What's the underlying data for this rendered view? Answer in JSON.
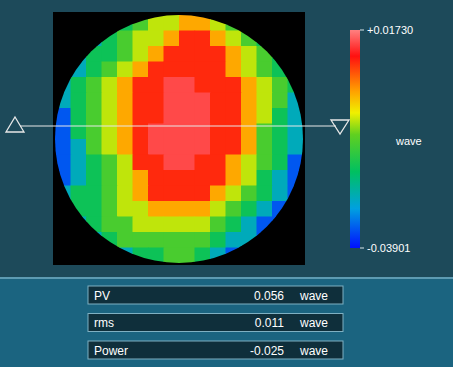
{
  "chart_data": {
    "type": "heatmap",
    "tick_labels": false,
    "cells": [
      [
        null,
        null,
        null,
        null,
        -0.018,
        -0.012,
        -0.006,
        -0.006,
        0.001,
        0.001,
        -0.006,
        -0.012,
        null,
        null,
        null,
        null
      ],
      [
        null,
        null,
        -0.026,
        -0.018,
        -0.012,
        -0.006,
        -0.006,
        0.001,
        0.009,
        0.009,
        0.001,
        -0.006,
        -0.012,
        -0.018,
        null,
        null
      ],
      [
        null,
        -0.026,
        -0.018,
        -0.018,
        -0.012,
        -0.006,
        0.001,
        0.009,
        0.009,
        0.009,
        0.009,
        0.001,
        -0.006,
        -0.012,
        -0.018,
        null
      ],
      [
        -0.026,
        -0.026,
        -0.018,
        -0.012,
        -0.006,
        0.001,
        0.009,
        0.009,
        0.009,
        0.009,
        0.009,
        0.001,
        -0.006,
        -0.012,
        -0.018,
        -0.026
      ],
      [
        -0.026,
        -0.018,
        -0.012,
        -0.006,
        0.001,
        0.009,
        0.009,
        0.014,
        0.014,
        0.009,
        0.009,
        0.009,
        0.001,
        -0.006,
        -0.012,
        -0.018
      ],
      [
        -0.026,
        -0.018,
        -0.012,
        -0.006,
        0.001,
        0.009,
        0.009,
        0.014,
        0.014,
        0.014,
        0.009,
        0.009,
        0.001,
        -0.006,
        -0.012,
        -0.026
      ],
      [
        -0.034,
        -0.018,
        -0.012,
        -0.006,
        0.001,
        0.009,
        0.009,
        0.014,
        0.014,
        0.014,
        0.009,
        0.009,
        0.001,
        -0.006,
        -0.018,
        -0.026
      ],
      [
        -0.034,
        -0.018,
        -0.012,
        -0.006,
        0.001,
        0.009,
        0.014,
        0.014,
        0.014,
        0.014,
        0.009,
        0.009,
        0.001,
        -0.012,
        -0.018,
        -0.026
      ],
      [
        -0.034,
        -0.026,
        -0.012,
        -0.006,
        0.001,
        0.009,
        0.014,
        0.014,
        0.014,
        0.014,
        0.009,
        0.009,
        0.001,
        -0.012,
        -0.018,
        -0.026
      ],
      [
        -0.034,
        -0.026,
        -0.018,
        -0.012,
        -0.006,
        0.009,
        0.009,
        0.014,
        0.014,
        0.009,
        0.009,
        0.001,
        -0.006,
        -0.012,
        -0.018,
        -0.034
      ],
      [
        -0.034,
        -0.026,
        -0.018,
        -0.012,
        -0.006,
        0.001,
        0.009,
        0.009,
        0.009,
        0.009,
        0.009,
        0.001,
        -0.006,
        -0.018,
        -0.026,
        -0.034
      ],
      [
        -0.026,
        -0.018,
        -0.018,
        -0.012,
        -0.006,
        0.001,
        0.009,
        0.009,
        0.009,
        0.009,
        0.001,
        -0.006,
        -0.012,
        -0.018,
        -0.026,
        -0.034
      ],
      [
        -0.034,
        -0.018,
        -0.018,
        -0.012,
        -0.006,
        -0.006,
        0.001,
        0.001,
        0.001,
        0.001,
        -0.006,
        -0.012,
        -0.018,
        -0.026,
        -0.034,
        -0.034
      ],
      [
        null,
        -0.026,
        -0.018,
        -0.012,
        -0.012,
        -0.006,
        -0.006,
        -0.006,
        -0.006,
        -0.006,
        -0.012,
        -0.018,
        -0.026,
        -0.034,
        -0.034,
        null
      ],
      [
        null,
        null,
        -0.026,
        -0.018,
        -0.012,
        -0.012,
        -0.012,
        -0.012,
        -0.012,
        -0.012,
        -0.018,
        -0.026,
        -0.026,
        -0.034,
        null,
        null
      ],
      [
        null,
        null,
        null,
        null,
        -0.026,
        -0.018,
        -0.018,
        -0.012,
        -0.012,
        -0.018,
        -0.026,
        -0.034,
        null,
        null,
        null,
        null
      ]
    ],
    "colorbar": {
      "range": [
        -0.03901,
        0.0173
      ],
      "ticks": [
        {
          "value": 0.0173,
          "label": "+0.01730"
        },
        -0.03901
      ],
      "label": "wave"
    }
  },
  "readouts": [
    {
      "label": "PV",
      "value": 0.056,
      "unit": "wave"
    },
    {
      "label": "rms",
      "value": 0.011,
      "unit": "wave"
    },
    {
      "label": "Power",
      "value": -0.025,
      "unit": "wave"
    }
  ]
}
